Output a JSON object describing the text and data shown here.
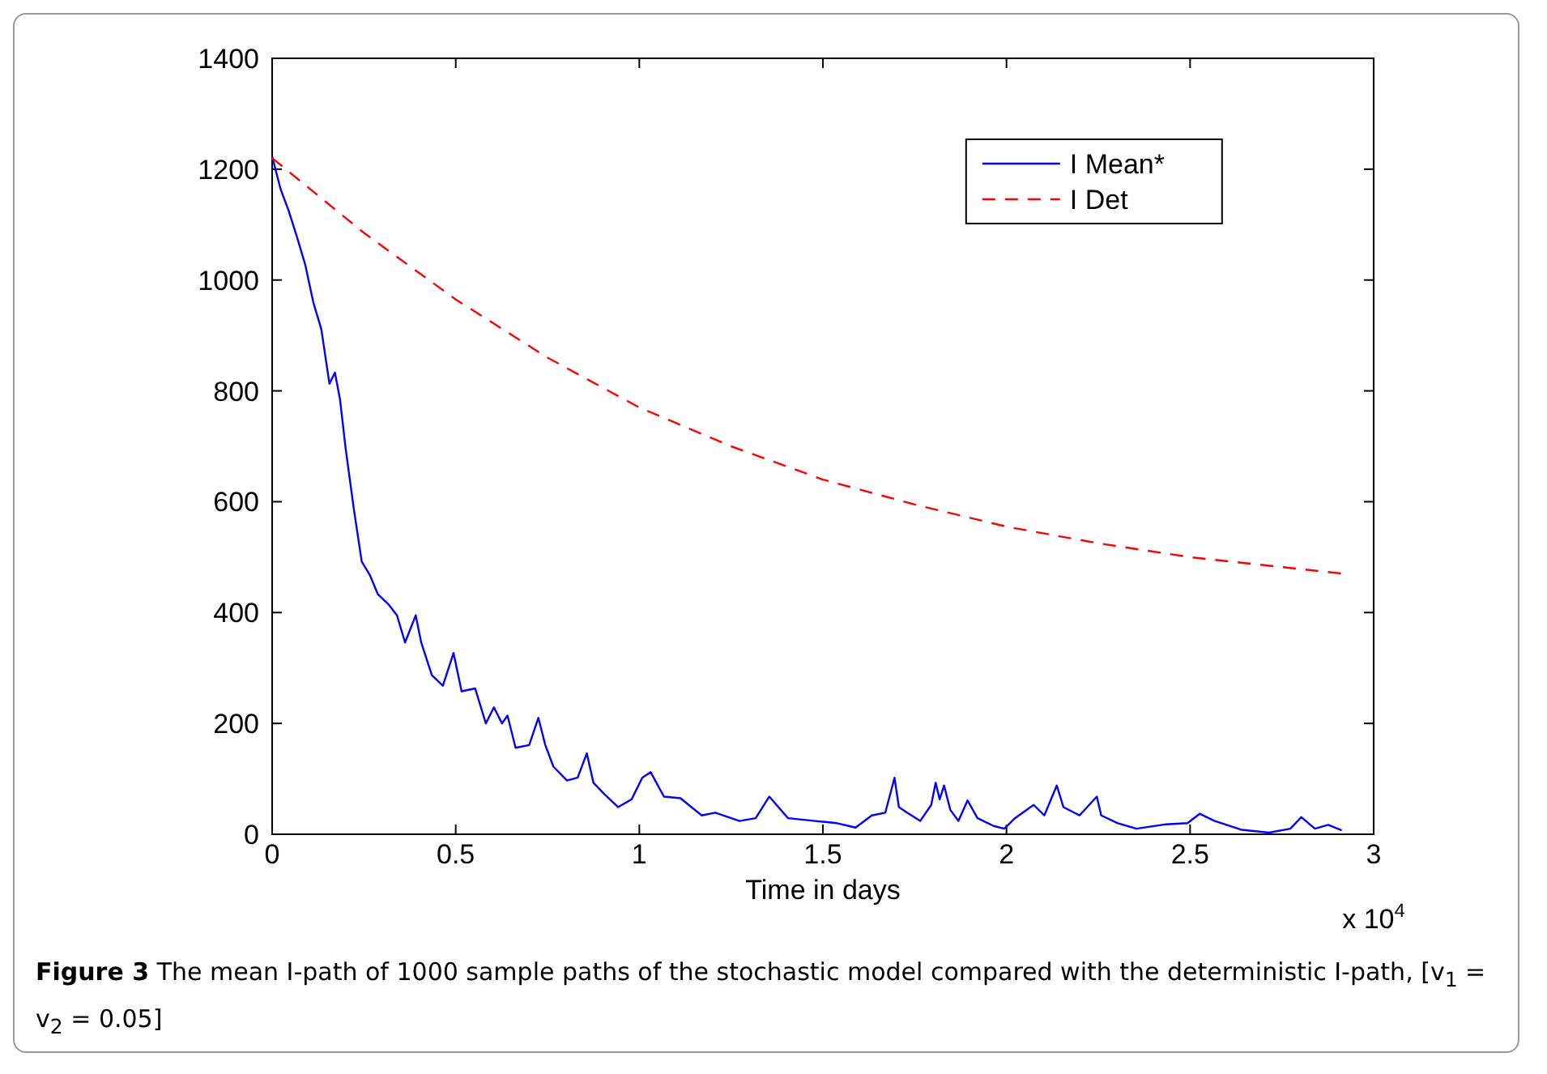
{
  "chart_data": {
    "type": "line",
    "xlabel": "Time in days",
    "xlim": [
      0,
      3
    ],
    "xticks": [
      0,
      0.5,
      1,
      1.5,
      2,
      2.5,
      3
    ],
    "ylim": [
      0,
      1400
    ],
    "yticks": [
      0,
      200,
      400,
      600,
      800,
      1000,
      1200,
      1400
    ],
    "grid": false,
    "legend": "top right",
    "marker": "none",
    "annotations": [
      "x 10$^{4}$",
      "Figure 3",
      "The mean I-path of 1000 sample paths of the stochastic model compared with the deterministic I-path, [v$_{1}$ = v$_{2}$ = 0.05]"
    ],
    "series": [
      {
        "name": "I Mean*",
        "color": "#0000ff",
        "line_style": "solid",
        "x": [
          0,
          0.023,
          0.045,
          0.068,
          0.09,
          0.112,
          0.134,
          0.156,
          0.171,
          0.185,
          0.2,
          0.222,
          0.244,
          0.266,
          0.288,
          0.318,
          0.34,
          0.362,
          0.391,
          0.406,
          0.435,
          0.465,
          0.494,
          0.516,
          0.553,
          0.582,
          0.604,
          0.626,
          0.641,
          0.663,
          0.7,
          0.725,
          0.744,
          0.766,
          0.803,
          0.832,
          0.857,
          0.875,
          0.904,
          0.942,
          0.979,
          1.008,
          1.031,
          1.067,
          1.112,
          1.17,
          1.207,
          1.273,
          1.317,
          1.354,
          1.405,
          1.479,
          1.538,
          1.589,
          1.633,
          1.67,
          1.695,
          1.707,
          1.729,
          1.765,
          1.795,
          1.807,
          1.818,
          1.83,
          1.847,
          1.869,
          1.894,
          1.921,
          1.965,
          1.994,
          2.023,
          2.074,
          2.103,
          2.137,
          2.155,
          2.199,
          2.246,
          2.258,
          2.303,
          2.354,
          2.435,
          2.493,
          2.526,
          2.567,
          2.641,
          2.715,
          2.773,
          2.803,
          2.84,
          2.876,
          2.913
        ],
        "values": [
          1223,
          1164,
          1125,
          1077,
          1028,
          960,
          911,
          813,
          833,
          784,
          697,
          589,
          492,
          468,
          433,
          414,
          395,
          346,
          395,
          346,
          287,
          268,
          327,
          258,
          263,
          200,
          229,
          200,
          214,
          156,
          161,
          210,
          161,
          122,
          97,
          102,
          146,
          93,
          73,
          49,
          63,
          102,
          112,
          68,
          65,
          34,
          39,
          24,
          29,
          68,
          29,
          24,
          20,
          12,
          34,
          39,
          102,
          49,
          39,
          24,
          53,
          93,
          63,
          88,
          44,
          24,
          61,
          29,
          15,
          10,
          29,
          53,
          34,
          88,
          49,
          34,
          68,
          34,
          20,
          10,
          18,
          20,
          37,
          24,
          8,
          3,
          10,
          31,
          10,
          17,
          7
        ]
      },
      {
        "name": "I Det",
        "color": "#ff0000",
        "line_style": "dashed",
        "x": [
          0,
          0.25,
          0.5,
          0.75,
          1,
          1.25,
          1.5,
          1.75,
          2,
          2.25,
          2.5,
          2.75,
          2.92
        ],
        "values": [
          1220,
          1085,
          965,
          860,
          770,
          700,
          640,
          595,
          555,
          525,
          500,
          482,
          470
        ]
      }
    ]
  }
}
